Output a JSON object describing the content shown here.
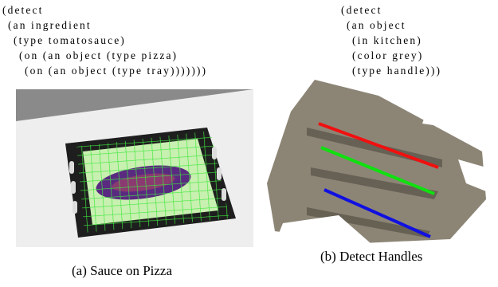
{
  "figure": {
    "panels": [
      {
        "code": [
          "(detect",
          "(an ingredient",
          "(type tomatosauce)",
          "(on (an object (type pizza)",
          "(on (an object (type tray)))))))"
        ],
        "caption": "(a) Sauce on Pizza"
      },
      {
        "code": [
          "(detect",
          "(an object",
          "(in kitchen)",
          "(color grey)",
          "(type handle)))"
        ],
        "caption": "(b) Detect Handles"
      }
    ]
  }
}
